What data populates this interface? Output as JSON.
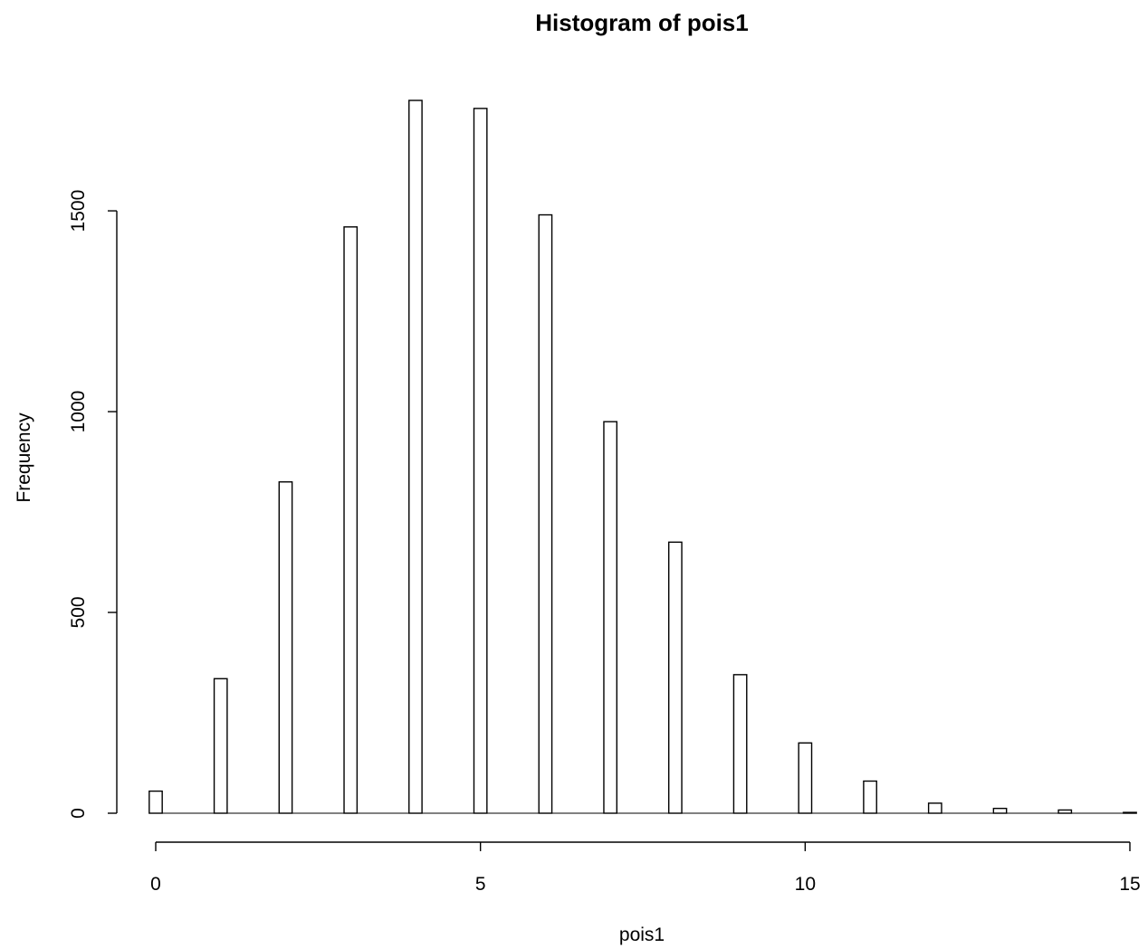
{
  "chart_data": {
    "type": "bar",
    "title": "Histogram of pois1",
    "xlabel": "pois1",
    "ylabel": "Frequency",
    "bar_width": 0.2,
    "x": [
      0,
      1,
      2,
      3,
      4,
      5,
      6,
      7,
      8,
      9,
      10,
      11,
      12,
      13,
      14,
      15
    ],
    "values": [
      55,
      335,
      825,
      1460,
      1775,
      1755,
      1490,
      975,
      675,
      345,
      175,
      80,
      25,
      12,
      8,
      2
    ],
    "xlim": [
      0,
      15
    ],
    "ylim": [
      0,
      1775
    ],
    "xticks": [
      0,
      5,
      10,
      15
    ],
    "yticks": [
      0,
      500,
      1000,
      1500
    ],
    "grid": false,
    "colors": {
      "bar_fill": "#ffffff",
      "bar_stroke": "#000000"
    }
  }
}
